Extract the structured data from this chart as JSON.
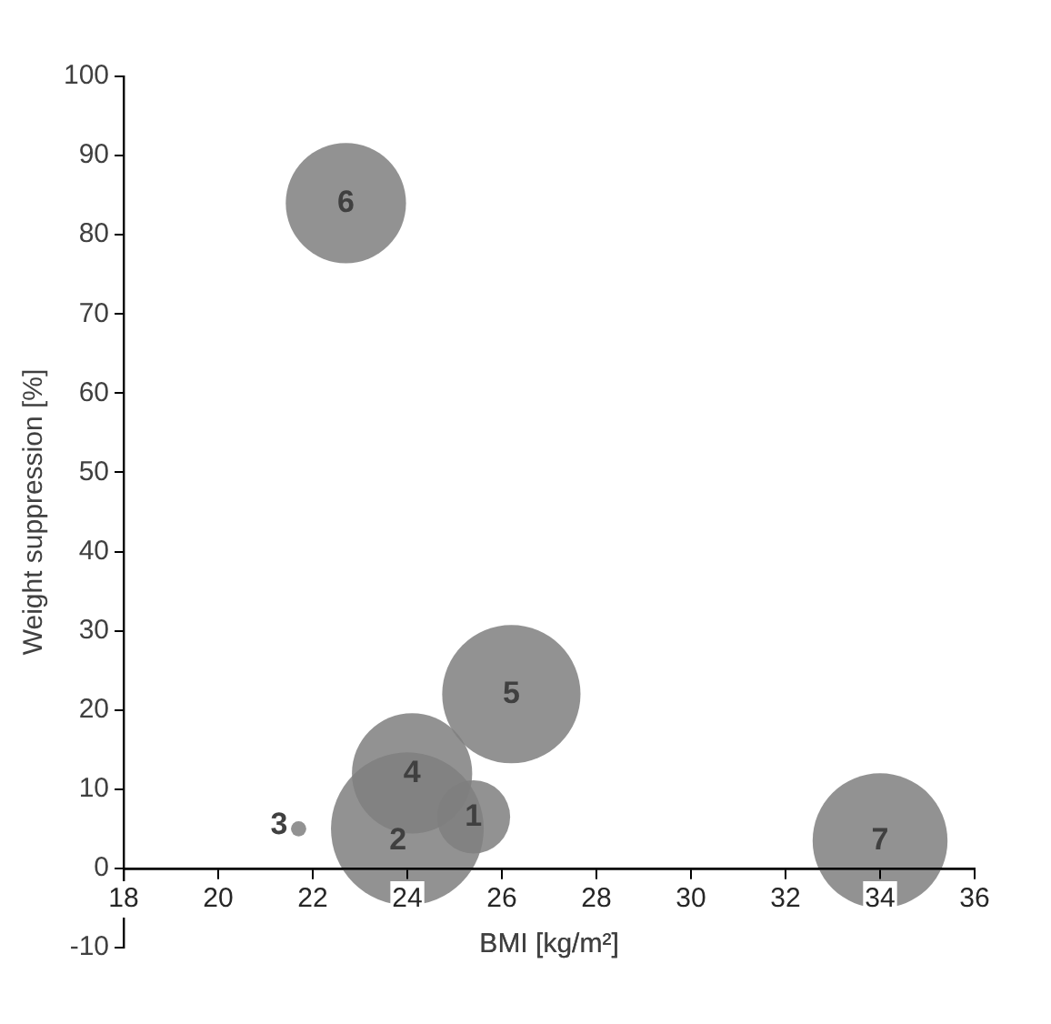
{
  "chart_data": {
    "type": "bubble",
    "xlabel": "BMI [kg/m²]",
    "ylabel": "Weight suppression [%]",
    "x": [
      25.4,
      24.0,
      21.7,
      24.1,
      26.2,
      22.7,
      34.0
    ],
    "values": [
      6.5,
      5,
      5,
      12,
      22,
      84,
      3.5
    ],
    "sizes": [
      0.23,
      1,
      0.01,
      0.62,
      0.82,
      0.62,
      0.78
    ],
    "color": "#7f7f7f",
    "xlim": [
      18,
      36
    ],
    "xticks": [
      18,
      20,
      22,
      24,
      26,
      28,
      30,
      32,
      34,
      36
    ],
    "ylim": [
      -10,
      100
    ],
    "yticks": [
      -10,
      0,
      10,
      20,
      30,
      40,
      50,
      60,
      70,
      80,
      90,
      100
    ],
    "grid": false,
    "legend": false,
    "annotations": [
      {
        "text": "1",
        "x": 25.4,
        "y": 6.5
      },
      {
        "text": "2",
        "x": 23.8,
        "y": 3.5
      },
      {
        "text": "3",
        "x": 21.7,
        "y": 5
      },
      {
        "text": "4",
        "x": 24.1,
        "y": 12
      },
      {
        "text": "5",
        "x": 26.2,
        "y": 22
      },
      {
        "text": "6",
        "x": 22.7,
        "y": 84
      },
      {
        "text": "7",
        "x": 34.0,
        "y": 3.5
      }
    ]
  }
}
